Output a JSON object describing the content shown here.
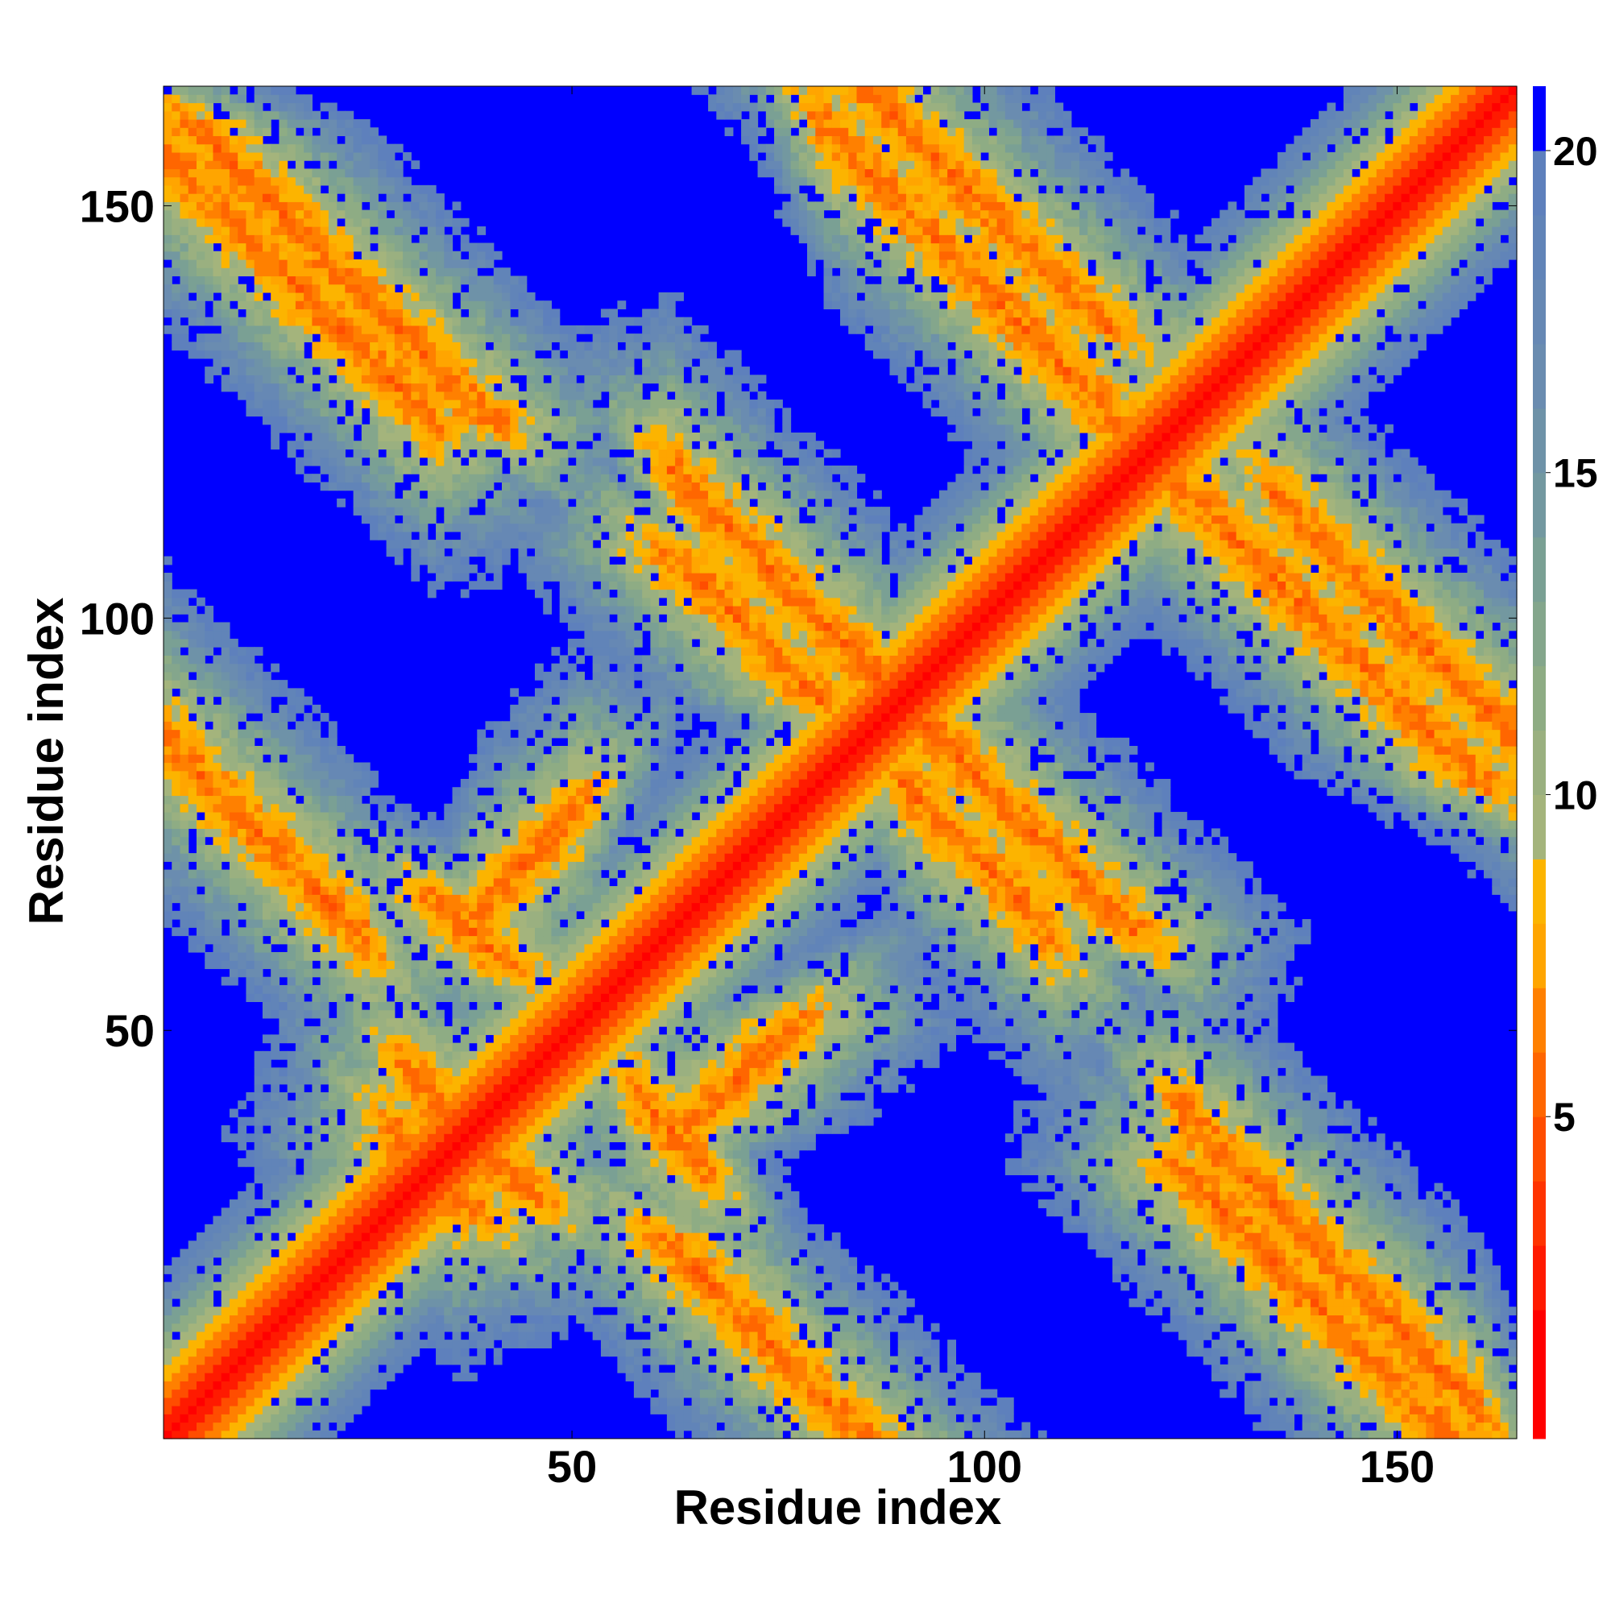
{
  "chart_data": {
    "type": "heatmap",
    "title": "",
    "xlabel": "Residue index",
    "ylabel": "Residue index",
    "xlim": [
      1,
      164
    ],
    "ylim": [
      1,
      164
    ],
    "n_residues": 164,
    "x_ticks": [
      50,
      100,
      150
    ],
    "y_ticks": [
      50,
      100,
      150
    ],
    "x_tick_labels": [
      "50",
      "100",
      "150"
    ],
    "y_tick_labels": [
      "50",
      "100",
      "150"
    ],
    "grid": false,
    "colorbar": {
      "ticks": [
        5,
        10,
        15,
        20
      ],
      "tick_labels": [
        "5",
        "10",
        "15",
        "20"
      ],
      "range": [
        0,
        21
      ],
      "levels": [
        {
          "max": 2,
          "color": "#ff0000"
        },
        {
          "max": 3,
          "color": "#ff1a00"
        },
        {
          "max": 4,
          "color": "#ff3300"
        },
        {
          "max": 5,
          "color": "#ff4d00"
        },
        {
          "max": 6,
          "color": "#ff6600"
        },
        {
          "max": 7,
          "color": "#ff8000"
        },
        {
          "max": 8,
          "color": "#ffa500"
        },
        {
          "max": 9,
          "color": "#fcb400"
        },
        {
          "max": 10,
          "color": "#a4b47c"
        },
        {
          "max": 11,
          "color": "#9ab080"
        },
        {
          "max": 12,
          "color": "#8eac84"
        },
        {
          "max": 13,
          "color": "#84a68c"
        },
        {
          "max": 14,
          "color": "#7aa094"
        },
        {
          "max": 15,
          "color": "#7398a0"
        },
        {
          "max": 16,
          "color": "#6e92a8"
        },
        {
          "max": 17,
          "color": "#6a8cb0"
        },
        {
          "max": 18,
          "color": "#6688b4"
        },
        {
          "max": 19,
          "color": "#6184b8"
        },
        {
          "max": 20,
          "color": "#5e80bc"
        },
        {
          "max": 999,
          "color": "#0000ff"
        }
      ]
    },
    "structure": {
      "description_contacts": [
        {
          "kind": "diagonal",
          "from": 1,
          "to": 164
        },
        {
          "kind": "antiparallel",
          "i_start": 1,
          "j_start": 156,
          "length": 32
        },
        {
          "kind": "antiparallel",
          "i_start": 1,
          "j_start": 85,
          "length": 24
        },
        {
          "kind": "antiparallel",
          "i_start": 30,
          "j_start": 45,
          "length": 10
        },
        {
          "kind": "antiparallel",
          "i_start": 28,
          "j_start": 38,
          "length": 8
        },
        {
          "kind": "parallel",
          "i_start": 39,
          "j_start": 65,
          "length": 12
        },
        {
          "kind": "antiparallel",
          "i_start": 58,
          "j_start": 42,
          "length": 8
        },
        {
          "kind": "antiparallel",
          "i_start": 62,
          "j_start": 118,
          "length": 32
        },
        {
          "kind": "antiparallel",
          "i_start": 80,
          "j_start": 160,
          "length": 44
        },
        {
          "kind": "antiparallel",
          "i_start": 90,
          "j_start": 80,
          "length": 18
        },
        {
          "kind": "antiparallel",
          "i_start": 124,
          "j_start": 40,
          "length": 36
        },
        {
          "kind": "antiparallel",
          "i_start": 135,
          "j_start": 115,
          "length": 30
        }
      ]
    }
  }
}
